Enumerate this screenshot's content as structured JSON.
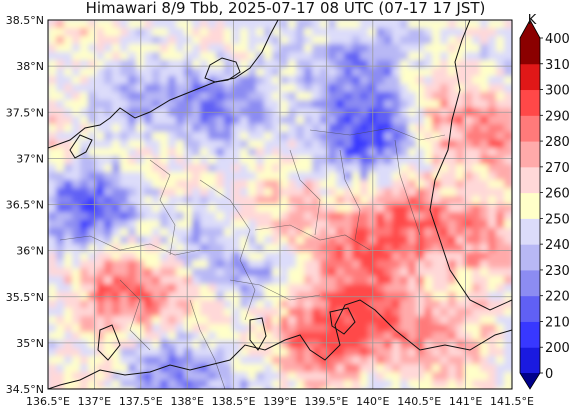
{
  "title": "Himawari 8/9 Tbb, 2025-07-17 08 UTC (07-17 17 JST)",
  "map": {
    "extent": {
      "lon_min": 136.5,
      "lon_max": 141.5,
      "lat_min": 34.5,
      "lat_max": 38.5
    },
    "gridlines": true,
    "lon_ticks": [
      {
        "value": 136.5,
        "label": "136.5°E"
      },
      {
        "value": 137.0,
        "label": "137°E"
      },
      {
        "value": 137.5,
        "label": "137.5°E"
      },
      {
        "value": 138.0,
        "label": "138°E"
      },
      {
        "value": 138.5,
        "label": "138.5°E"
      },
      {
        "value": 139.0,
        "label": "139°E"
      },
      {
        "value": 139.5,
        "label": "139.5°E"
      },
      {
        "value": 140.0,
        "label": "140°E"
      },
      {
        "value": 140.5,
        "label": "140.5°E"
      },
      {
        "value": 141.0,
        "label": "141°E"
      },
      {
        "value": 141.5,
        "label": "141.5°E"
      }
    ],
    "lat_ticks": [
      {
        "value": 34.5,
        "label": "34.5°N"
      },
      {
        "value": 35.0,
        "label": "35°N"
      },
      {
        "value": 35.5,
        "label": "35.5°N"
      },
      {
        "value": 36.0,
        "label": "36°N"
      },
      {
        "value": 36.5,
        "label": "36.5°N"
      },
      {
        "value": 37.0,
        "label": "37°N"
      },
      {
        "value": 37.5,
        "label": "37.5°N"
      },
      {
        "value": 38.0,
        "label": "38°N"
      },
      {
        "value": 38.5,
        "label": "38.5°N"
      }
    ]
  },
  "colorbar": {
    "unit": "K",
    "levels": [
      {
        "value": 0,
        "label": "0",
        "color": "#00008b"
      },
      {
        "value": 200,
        "label": "200",
        "color": "#1a1ae0"
      },
      {
        "value": 210,
        "label": "210",
        "color": "#3838ff"
      },
      {
        "value": 220,
        "label": "220",
        "color": "#6060f5"
      },
      {
        "value": 230,
        "label": "230",
        "color": "#8c8cf2"
      },
      {
        "value": 240,
        "label": "240",
        "color": "#b8b8f5"
      },
      {
        "value": 250,
        "label": "250",
        "color": "#dcdcfa"
      },
      {
        "value": 260,
        "label": "260",
        "color": "#ffffc8"
      },
      {
        "value": 270,
        "label": "270",
        "color": "#ffd8d8"
      },
      {
        "value": 280,
        "label": "280",
        "color": "#ffaaaa"
      },
      {
        "value": 290,
        "label": "290",
        "color": "#ff7a7a"
      },
      {
        "value": 300,
        "label": "300",
        "color": "#ff4848"
      },
      {
        "value": 310,
        "label": "310",
        "color": "#e01818"
      },
      {
        "value": 400,
        "label": "400",
        "color": "#8b0000"
      }
    ]
  }
}
